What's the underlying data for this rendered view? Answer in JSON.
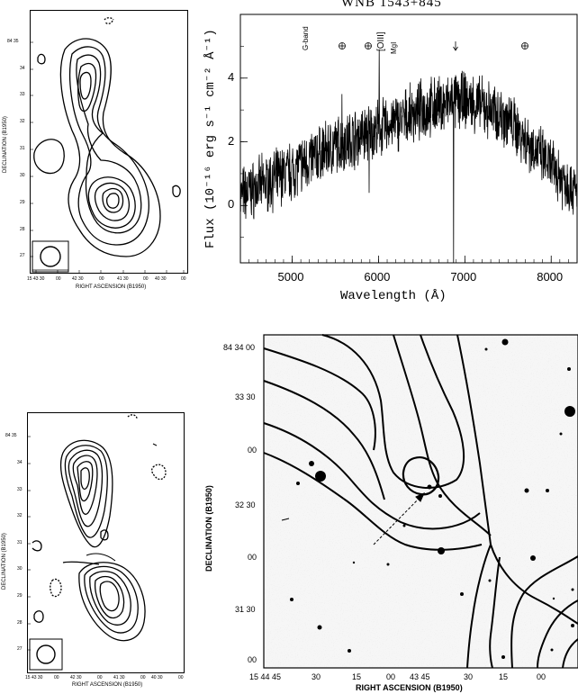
{
  "radio_map_top": {
    "ylabel": "DECLINATION (B1950)",
    "xlabel": "RIGHT ASCENSION (B1950)",
    "yticks": [
      "84 35",
      "34",
      "33",
      "32",
      "31",
      "30",
      "29",
      "28",
      "27"
    ],
    "xticks": [
      "15 43 30",
      "00",
      "42 30",
      "00",
      "41 30",
      "00",
      "40 30",
      "00"
    ]
  },
  "radio_map_bottom": {
    "ylabel": "DECLINATION (B1950)",
    "xlabel": "RIGHT ASCENSION (B1950)",
    "yticks": [
      "84 35",
      "34",
      "33",
      "32",
      "31",
      "30",
      "29",
      "28",
      "27"
    ],
    "xticks": [
      "15 43 30",
      "00",
      "42 30",
      "00",
      "41 30",
      "00",
      "40 30",
      "00"
    ]
  },
  "spectrum": {
    "title": "WNB 1543+845",
    "xlabel": "Wavelength (Å)",
    "ylabel": "Flux (10⁻¹⁶ erg s⁻¹ cm⁻² Å⁻¹)",
    "line_labels": [
      "G-band",
      "[OIII]",
      "MgI"
    ],
    "telluric_symbol": "⊕",
    "arrow_symbol": "↓",
    "chart_data": {
      "type": "line",
      "title": "WNB 1543+845",
      "xlabel": "Wavelength (Å)",
      "ylabel": "Flux (10⁻¹⁶ erg s⁻¹ cm⁻² Å⁻¹)",
      "xlim": [
        4400,
        8300
      ],
      "ylim": [
        -1.8,
        6.0
      ],
      "xticks": [
        5000,
        6000,
        7000,
        8000
      ],
      "yticks": [
        0,
        2,
        4
      ],
      "grid": false,
      "continuum": {
        "x": [
          4400,
          4700,
          5000,
          5300,
          5600,
          5900,
          6200,
          6500,
          6800,
          7000,
          7200,
          7500,
          7800,
          8000,
          8300
        ],
        "y": [
          0.3,
          0.7,
          1.1,
          1.6,
          2.0,
          2.3,
          2.6,
          3.0,
          3.2,
          3.3,
          3.1,
          2.7,
          1.8,
          1.2,
          0.4
        ]
      },
      "features": [
        {
          "x": 5577,
          "y": -0.7
        },
        {
          "x": 5577,
          "y": 3.5
        },
        {
          "x": 5890,
          "y": 0.4
        },
        {
          "x": 6007,
          "y": 4.9
        },
        {
          "x": 6300,
          "y": 2.2
        },
        {
          "x": 6870,
          "y": -1.8
        }
      ]
    }
  },
  "optical_image": {
    "ylabel": "DECLINATION (B1950)",
    "xlabel": "RIGHT ASCENSION (B1950)",
    "yticks": [
      "84 34 00",
      "33 30",
      "00",
      "32 30",
      "00",
      "31 30",
      "00"
    ],
    "xticks": [
      "15 44 45",
      "30",
      "15",
      "00",
      "43 45",
      "30",
      "15",
      "00"
    ]
  }
}
